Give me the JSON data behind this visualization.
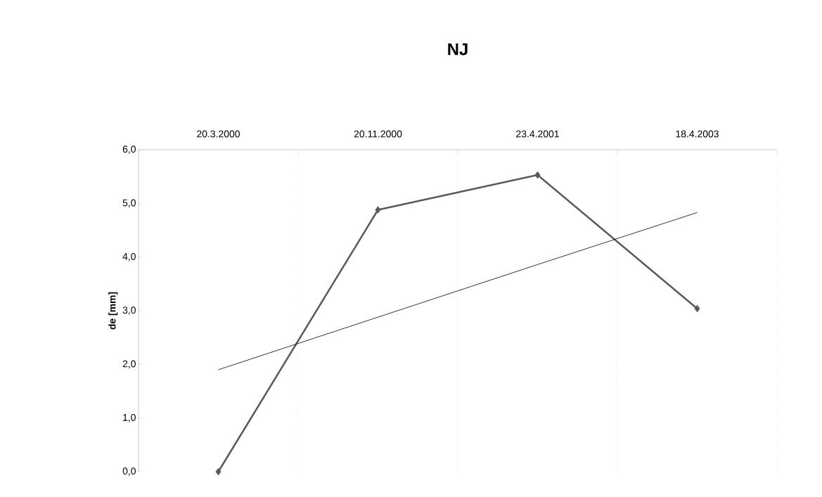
{
  "chart_data": {
    "type": "line",
    "title": "NJ",
    "ylabel": "de [mm]",
    "categories": [
      "20.3.2000",
      "20.11.2000",
      "23.4.2001",
      "18.4.2003"
    ],
    "series": [
      {
        "color": "#595959",
        "values": [
          0.0,
          4.88,
          5.53,
          3.04
        ],
        "marker": "diamond"
      },
      {
        "color": "#000000",
        "values": [
          1.9,
          2.88,
          3.86,
          4.83
        ],
        "marker": "none"
      }
    ],
    "ylim": [
      0,
      6
    ],
    "yticks": [
      {
        "value": 0,
        "label": "0,0"
      },
      {
        "value": 1,
        "label": "1,0"
      },
      {
        "value": 2,
        "label": "2,0"
      },
      {
        "value": 3,
        "label": "3,0"
      },
      {
        "value": 4,
        "label": "4,0"
      },
      {
        "value": 5,
        "label": "5,0"
      },
      {
        "value": 6,
        "label": "6,0"
      }
    ],
    "grid": "x"
  }
}
